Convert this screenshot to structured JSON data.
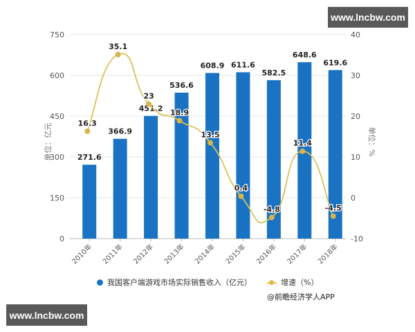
{
  "watermarks": {
    "top": "www.lncbw.com",
    "bottom": "www.lncbw.com"
  },
  "legend": {
    "bar_label": "我国客户端游戏市场实际销售收入（亿元）",
    "line_label": "增速（%）"
  },
  "source": "@前瞻经济学人APP",
  "colors": {
    "bar": "#1a73c2",
    "line": "#d9c25a",
    "marker": "#d8b54a",
    "grid": "#e6e6e6",
    "axis_text": "#555555"
  },
  "chart_data": {
    "type": "bar",
    "title": "",
    "categories": [
      "2010年",
      "2011年",
      "2012年",
      "2013年",
      "2014年",
      "2015年",
      "2016年",
      "2017年",
      "2018年"
    ],
    "series": [
      {
        "name": "我国客户端游戏市场实际销售收入（亿元）",
        "type": "bar",
        "axis": "left",
        "values": [
          271.6,
          366.9,
          451.2,
          536.6,
          608.9,
          611.6,
          582.5,
          648.6,
          619.6
        ]
      },
      {
        "name": "增速（%）",
        "type": "line",
        "axis": "right",
        "smooth": true,
        "values": [
          16.3,
          35.1,
          23,
          18.9,
          13.5,
          0.4,
          -4.8,
          11.4,
          -4.5
        ]
      }
    ],
    "ylabel": "单位：亿元",
    "y2label": "单位：%",
    "ylim": [
      0,
      750
    ],
    "yticks": [
      0,
      150,
      300,
      450,
      600,
      750
    ],
    "y2lim": [
      -10,
      40
    ],
    "y2ticks": [
      -10,
      0,
      10,
      20,
      30,
      40
    ],
    "grid": true,
    "legend_position": "bottom"
  }
}
